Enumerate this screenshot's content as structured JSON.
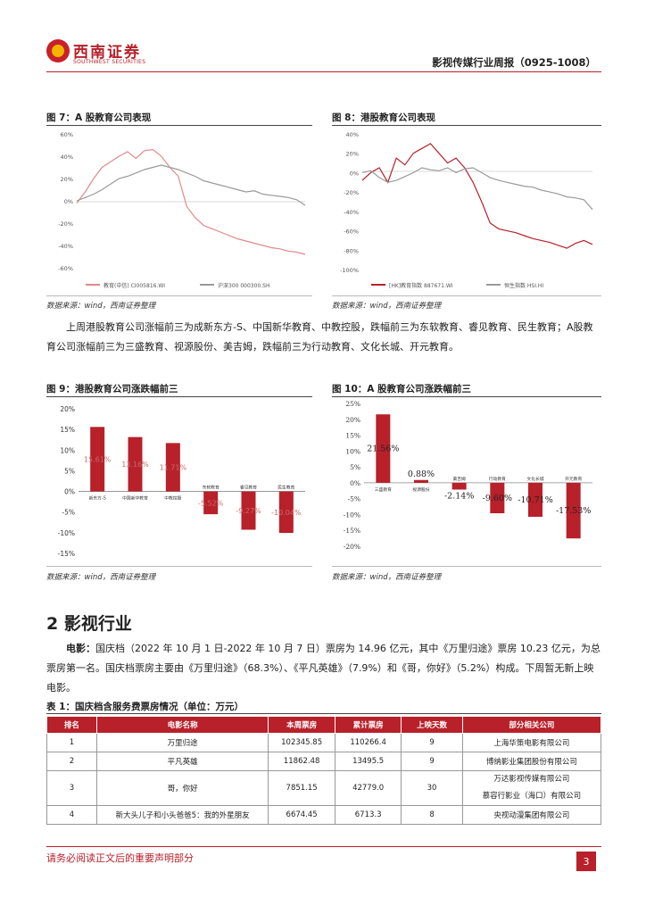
{
  "header": {
    "logo_cn": "西南证券",
    "logo_en": "SOUTHWEST SECURITIES",
    "report_title": "影视传媒行业周报（0925-1008）"
  },
  "fig7": {
    "title": "图 7：A 股教育公司表现",
    "source": "数据来源：wind，西南证券整理",
    "chart_data": {
      "type": "line",
      "ylim": [
        -60,
        60
      ],
      "yticks": [
        "60%",
        "40%",
        "20%",
        "0%",
        "-20%",
        "-40%",
        "-60%"
      ],
      "series": [
        {
          "name": "教育(中信) CI005816.WI",
          "color": "#e08a8a",
          "values": [
            -2,
            8,
            20,
            30,
            35,
            40,
            44,
            38,
            45,
            46,
            40,
            30,
            22,
            -5,
            -15,
            -22,
            -25,
            -28,
            -31,
            -34,
            -36,
            -38,
            -40,
            -42,
            -43,
            -45,
            -46,
            -48
          ]
        },
        {
          "name": "沪深300 000300.SH",
          "color": "#9a9a9a",
          "values": [
            0,
            3,
            6,
            10,
            15,
            20,
            22,
            25,
            28,
            30,
            32,
            30,
            28,
            25,
            22,
            18,
            16,
            14,
            12,
            10,
            8,
            9,
            6,
            5,
            4,
            3,
            1,
            -4
          ]
        }
      ]
    }
  },
  "fig8": {
    "title": "图 8：港股教育公司表现",
    "source": "数据来源：wind，西南证券整理",
    "chart_data": {
      "type": "line",
      "ylim": [
        -100,
        40
      ],
      "yticks": [
        "40%",
        "20%",
        "0%",
        "-20%",
        "-40%",
        "-60%",
        "-80%",
        "-100%"
      ],
      "series": [
        {
          "name": "[HK]教育指数 887671.WI",
          "color": "#b8202a",
          "values": [
            -8,
            0,
            5,
            -10,
            15,
            8,
            20,
            25,
            30,
            20,
            10,
            15,
            5,
            -10,
            -30,
            -52,
            -58,
            -60,
            -62,
            -65,
            -68,
            -70,
            -72,
            -75,
            -78,
            -73,
            -70,
            -74
          ]
        },
        {
          "name": "恒生指数 HSI.HI",
          "color": "#9a9a9a",
          "values": [
            0,
            2,
            -5,
            -10,
            -8,
            -4,
            0,
            5,
            3,
            2,
            5,
            0,
            4,
            5,
            0,
            -5,
            -8,
            -10,
            -12,
            -14,
            -15,
            -18,
            -20,
            -22,
            -25,
            -26,
            -28,
            -38
          ]
        }
      ]
    }
  },
  "intro_text": "上周港股教育公司涨幅前三为成新东方-S、中国新华教育、中教控股，跌幅前三为东软教育、睿见教育、民生教育；A股教育公司涨幅前三为三盛教育、视源股份、美吉姆，跌幅前三为行动教育、文化长城、开元教育。",
  "fig9": {
    "title": "图 9：港股教育公司涨跌幅前三",
    "source": "数据来源：wind，西南证券整理",
    "chart_data": {
      "type": "bar",
      "ylim": [
        -15,
        20
      ],
      "yticks": [
        "20%",
        "15%",
        "10%",
        "5%",
        "0%",
        "-5%",
        "-10%",
        "-15%"
      ],
      "categories": [
        "新东方-S",
        "中国新华教育",
        "中教控股",
        "东软教育",
        "睿见教育",
        "民生教育"
      ],
      "values": [
        15.61,
        13.16,
        11.71,
        -5.52,
        -9.27,
        -10.04
      ],
      "value_labels": [
        "15.61%",
        "13.16%",
        "11.71%",
        "-5.52%",
        "-9.27%",
        "-10.04%"
      ]
    }
  },
  "fig10": {
    "title": "图 10：A 股教育公司涨跌幅前三",
    "source": "数据来源：wind，西南证券整理",
    "chart_data": {
      "type": "bar",
      "ylim": [
        -20,
        25
      ],
      "yticks": [
        "25%",
        "20%",
        "15%",
        "10%",
        "5%",
        "0%",
        "-5%",
        "-10%",
        "-15%",
        "-20%"
      ],
      "categories": [
        "三盛教育",
        "视源股份",
        "美吉姆",
        "行动教育",
        "文化长城",
        "开元教育"
      ],
      "values": [
        21.56,
        0.88,
        -2.14,
        -9.6,
        -10.71,
        -17.53
      ],
      "value_labels": [
        "21.56%",
        "0.88%",
        "-2.14%",
        "-9.60%",
        "-10.71%",
        "-17.53%"
      ]
    }
  },
  "section2": {
    "heading": "2 影视行业",
    "movie_label": "电影：",
    "movie_text": "国庆档（2022 年 10 月 1 日-2022 年 10 月 7 日）票房为 14.96 亿元，其中《万里归途》票房 10.23 亿元，为总票房第一名。国庆档票房主要由《万里归途》（68.3%）、《平凡英雄》（7.9%）和《哥，你好》（5.2%）构成。下周暂无新上映电影。"
  },
  "table1": {
    "title": "表 1：国庆档含服务费票房情况（单位：万元）",
    "headers": [
      "排名",
      "电影名称",
      "本周票房",
      "累计票房",
      "上映天数",
      "部分相关公司"
    ],
    "rows": [
      [
        "1",
        "万里归途",
        "102345.85",
        "110266.4",
        "9",
        "上海华策电影有限公司"
      ],
      [
        "2",
        "平凡英雄",
        "11862.48",
        "13495.5",
        "9",
        "博纳影业集团股份有限公司"
      ],
      [
        "3",
        "哥，你好",
        "7851.15",
        "42779.0",
        "30",
        "万达影视传媒有限公司\n慕容行影业（海口）有限公司"
      ],
      [
        "4",
        "新大头儿子和小头爸爸5：我的外星朋友",
        "6674.45",
        "6713.3",
        "8",
        "央视动漫集团有限公司"
      ]
    ]
  },
  "footer": {
    "note": "请务必阅读正文后的重要声明部分",
    "page": "3"
  }
}
